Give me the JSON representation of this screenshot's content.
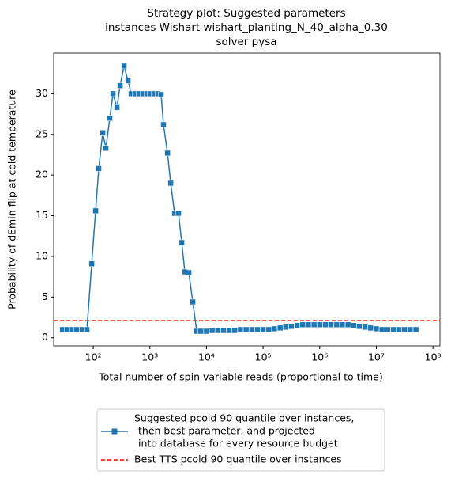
{
  "chart_data": {
    "type": "line",
    "title": [
      "Strategy plot: Suggested parameters",
      "instances Wishart wishart_planting_N_40_alpha_0.30",
      "solver pysa"
    ],
    "xlabel": "Total number of spin variable reads (proportional to time)",
    "ylabel": "Probability of dEmin flip at cold temperature",
    "xscale": "log",
    "xlim": [
      20,
      133000000
    ],
    "ylim": [
      -1,
      35
    ],
    "xticks": [
      {
        "value": 100,
        "label": "10²"
      },
      {
        "value": 1000,
        "label": "10³"
      },
      {
        "value": 10000,
        "label": "10⁴"
      },
      {
        "value": 100000,
        "label": "10⁵"
      },
      {
        "value": 1000000,
        "label": "10⁶"
      },
      {
        "value": 10000000,
        "label": "10⁷"
      },
      {
        "value": 100000000,
        "label": "10⁸"
      }
    ],
    "yticks": [
      0,
      5,
      10,
      15,
      20,
      25,
      30
    ],
    "grid": false,
    "legend": "below",
    "x": [
      28.6,
      34.7,
      42.0,
      50.9,
      63.8,
      77.3,
      93.8,
      110,
      125,
      147,
      167,
      196,
      223,
      262,
      298,
      350,
      411,
      467,
      548,
      644,
      756,
      888,
      1010,
      1190,
      1390,
      1580,
      1740,
      2050,
      2330,
      2730,
      3210,
      3650,
      4150,
      4880,
      5720,
      6720,
      7940,
      10000,
      12600,
      15800,
      20000,
      25100,
      31600,
      39800,
      50100,
      63100,
      79400,
      100000,
      126000,
      158000,
      200000,
      251000,
      316000,
      398000,
      501000,
      631000,
      794000,
      1000000,
      1260000,
      1580000,
      2000000,
      2510000,
      3160000,
      3980000,
      5010000,
      6310000,
      7940000,
      10000000,
      12600000,
      15800000,
      20000000,
      25100000,
      31600000,
      39800000,
      50100000
    ],
    "series": [
      {
        "name": [
          "Suggested pcold 90 quantile over instances,",
          "then best parameter, and projected",
          "into database for every resource budget"
        ],
        "color": "#1f77b4",
        "marker": "square",
        "values": [
          1.0,
          1.0,
          1.0,
          1.0,
          1.0,
          1.0,
          9.1,
          15.6,
          20.8,
          25.2,
          23.3,
          27,
          30,
          28.3,
          31,
          33.4,
          31.6,
          30,
          30,
          30,
          30,
          30,
          30,
          30,
          30,
          29.9,
          26.2,
          22.7,
          19,
          15.3,
          15.3,
          11.7,
          8.1,
          8,
          4.4,
          0.8,
          0.8,
          0.8,
          0.9,
          0.9,
          0.9,
          0.9,
          0.9,
          1.0,
          1.0,
          1.0,
          1.0,
          1.0,
          1.0,
          1.1,
          1.2,
          1.3,
          1.4,
          1.5,
          1.6,
          1.6,
          1.6,
          1.6,
          1.6,
          1.6,
          1.6,
          1.6,
          1.6,
          1.5,
          1.4,
          1.3,
          1.2,
          1.1,
          1.0,
          1.0,
          1.0,
          1.0,
          1.0,
          1.0,
          1.0
        ]
      }
    ],
    "reference_line": {
      "name": "Best TTS pcold 90 quantile over instances",
      "y": 2.1,
      "color": "#ff0000",
      "style": "dashed"
    }
  }
}
